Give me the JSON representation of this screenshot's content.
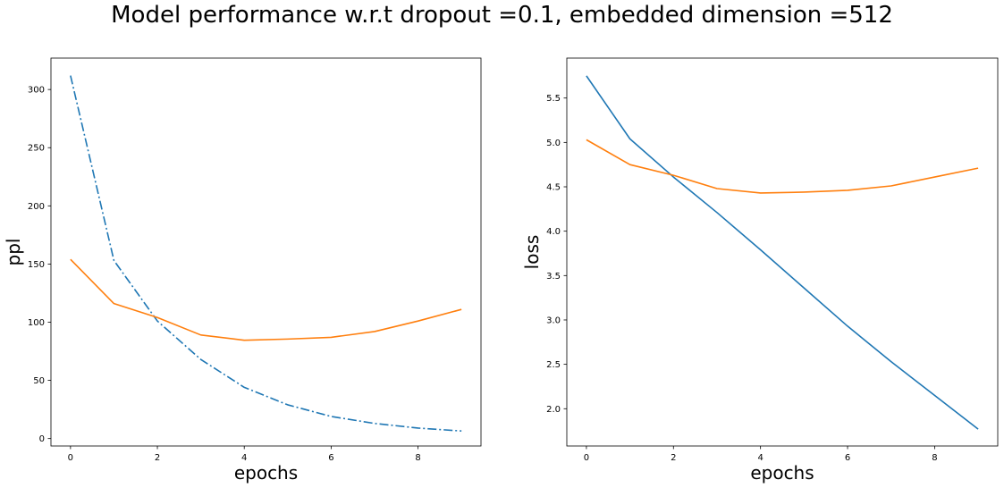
{
  "suptitle": "Model performance w.r.t dropout =0.1, embedded dimension =512",
  "colors": {
    "series_blue": "#1f77b4",
    "series_orange": "#ff7f0e"
  },
  "chart_data": [
    {
      "type": "line",
      "xlabel": "epochs",
      "ylabel": "ppl",
      "xlim": [
        -0.45,
        9.45
      ],
      "ylim": [
        -6.4,
        327
      ],
      "xticks": [
        0,
        2,
        4,
        6,
        8
      ],
      "yticks": [
        0,
        50,
        100,
        150,
        200,
        250,
        300
      ],
      "grid": false,
      "x": [
        0,
        1,
        2,
        3,
        4,
        5,
        6,
        7,
        8,
        9
      ],
      "series": [
        {
          "values": [
            312,
            153,
            101,
            68,
            44,
            29,
            19,
            13,
            9,
            6.5
          ],
          "color": "#1f77b4",
          "linestyle": "dashdot"
        },
        {
          "values": [
            154,
            116,
            104,
            89,
            84.5,
            85.5,
            87,
            92,
            101,
            111
          ],
          "color": "#ff7f0e",
          "linestyle": "solid"
        }
      ]
    },
    {
      "type": "line",
      "xlabel": "epochs",
      "ylabel": "loss",
      "xlim": [
        -0.45,
        9.45
      ],
      "ylim": [
        1.58,
        5.95
      ],
      "xticks": [
        0,
        2,
        4,
        6,
        8
      ],
      "yticks": [
        2.0,
        2.5,
        3.0,
        3.5,
        4.0,
        4.5,
        5.0,
        5.5
      ],
      "grid": false,
      "x": [
        0,
        1,
        2,
        3,
        4,
        5,
        6,
        7,
        8,
        9
      ],
      "series": [
        {
          "values": [
            5.75,
            5.04,
            4.61,
            4.21,
            3.79,
            3.36,
            2.93,
            2.53,
            2.15,
            1.77
          ],
          "color": "#1f77b4",
          "linestyle": "solid"
        },
        {
          "values": [
            5.03,
            4.75,
            4.63,
            4.48,
            4.43,
            4.44,
            4.46,
            4.51,
            4.61,
            4.71
          ],
          "color": "#ff7f0e",
          "linestyle": "solid"
        }
      ]
    }
  ]
}
